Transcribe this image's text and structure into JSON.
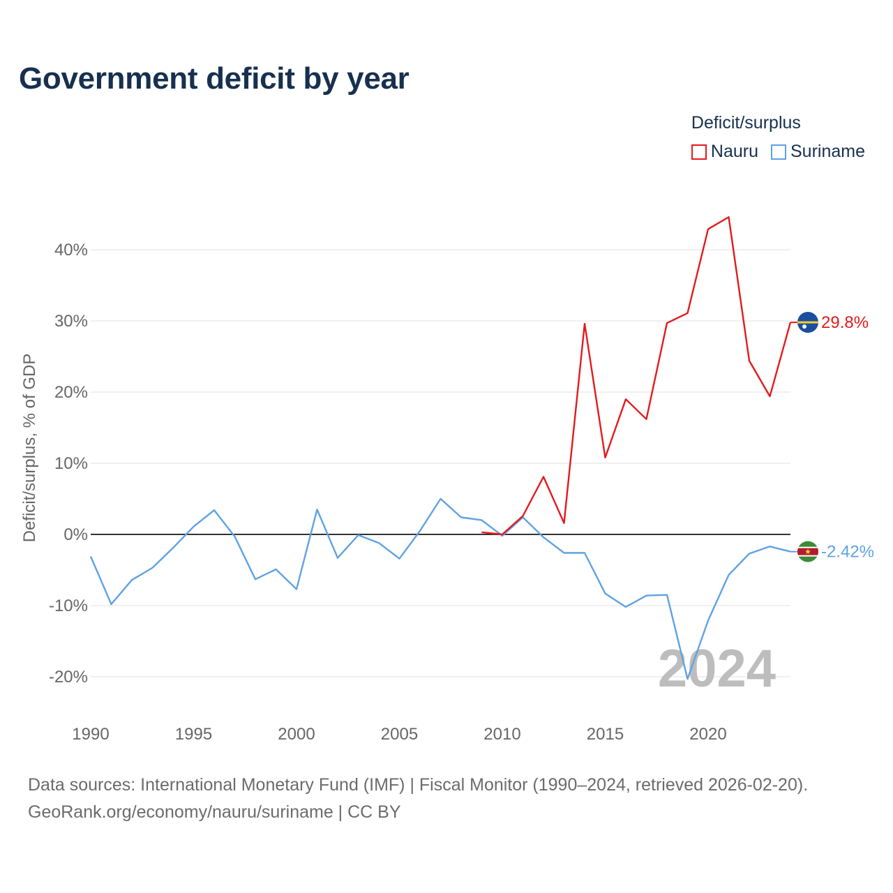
{
  "header": {
    "title": "Government deficit by year"
  },
  "legend": {
    "title": "Deficit/surplus",
    "items": [
      {
        "label": "Nauru",
        "color": "#e41a1c"
      },
      {
        "label": "Suriname",
        "color": "#5fa2e2"
      }
    ]
  },
  "watermark_year": "2024",
  "chart_data": {
    "type": "line",
    "title": "Government deficit by year",
    "xlabel": "",
    "ylabel": "Deficit/surplus, % of GDP",
    "xlim": [
      1990,
      2024
    ],
    "ylim": [
      -25,
      50
    ],
    "x_ticks": [
      1990,
      1995,
      2000,
      2005,
      2010,
      2015,
      2020
    ],
    "x_tick_labels": [
      "1990",
      "1995",
      "2000",
      "2005",
      "2010",
      "2015",
      "2020"
    ],
    "y_ticks": [
      -20,
      -10,
      0,
      10,
      20,
      30,
      40
    ],
    "y_tick_labels": [
      "-20%",
      "-10%",
      "0%",
      "10%",
      "20%",
      "30%",
      "40%"
    ],
    "grid": true,
    "legend_position": "top-right",
    "series": [
      {
        "name": "Nauru",
        "color": "#e41a1c",
        "end_label": "29.8%",
        "points": [
          [
            2009,
            0.3
          ],
          [
            2010,
            0.0
          ],
          [
            2011,
            2.6
          ],
          [
            2012,
            8.1
          ],
          [
            2013,
            1.6
          ],
          [
            2014,
            29.6
          ],
          [
            2015,
            10.8
          ],
          [
            2016,
            19.0
          ],
          [
            2017,
            16.2
          ],
          [
            2018,
            29.7
          ],
          [
            2019,
            31.1
          ],
          [
            2020,
            42.9
          ],
          [
            2021,
            44.6
          ],
          [
            2022,
            24.4
          ],
          [
            2023,
            19.4
          ],
          [
            2024,
            29.8
          ]
        ]
      },
      {
        "name": "Suriname",
        "color": "#5fa2e2",
        "end_label": "-2.42%",
        "points": [
          [
            1990,
            -3.1
          ],
          [
            1991,
            -9.8
          ],
          [
            1992,
            -6.4
          ],
          [
            1993,
            -4.7
          ],
          [
            1994,
            -1.9
          ],
          [
            1995,
            1.1
          ],
          [
            1996,
            3.4
          ],
          [
            1997,
            -0.3
          ],
          [
            1998,
            -6.3
          ],
          [
            1999,
            -4.9
          ],
          [
            2000,
            -7.7
          ],
          [
            2001,
            3.5
          ],
          [
            2002,
            -3.3
          ],
          [
            2003,
            -0.1
          ],
          [
            2004,
            -1.2
          ],
          [
            2005,
            -3.4
          ],
          [
            2006,
            0.5
          ],
          [
            2007,
            5.0
          ],
          [
            2008,
            2.4
          ],
          [
            2009,
            2.0
          ],
          [
            2010,
            -0.2
          ],
          [
            2011,
            2.4
          ],
          [
            2012,
            -0.4
          ],
          [
            2013,
            -2.6
          ],
          [
            2014,
            -2.6
          ],
          [
            2015,
            -8.3
          ],
          [
            2016,
            -10.2
          ],
          [
            2017,
            -8.6
          ],
          [
            2018,
            -8.5
          ],
          [
            2019,
            -20.3
          ],
          [
            2020,
            -12.1
          ],
          [
            2021,
            -5.7
          ],
          [
            2022,
            -2.7
          ],
          [
            2023,
            -1.7
          ],
          [
            2024,
            -2.42
          ]
        ]
      }
    ]
  },
  "footer": {
    "source": "Data sources: International Monetary Fund (IMF) | Fiscal Monitor (1990–2024, retrieved 2026-02-20).",
    "credit": "GeoRank.org/economy/nauru/suriname | CC BY"
  }
}
